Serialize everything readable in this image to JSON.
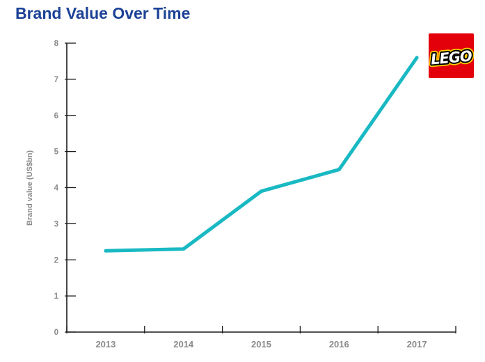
{
  "title": "Brand Value Over Time",
  "colors": {
    "title": "#1c4296",
    "line": "#19b9c3",
    "axis": "#1a1a1a",
    "tick_label": "#8a8a8a"
  },
  "logo": {
    "text": "LEGO",
    "bg": "#e3000b",
    "outline_yellow": "#ffcf00",
    "outline_black": "#000000",
    "letter_fill": "#ffffff"
  },
  "chart_data": {
    "type": "line",
    "title": "Brand Value Over Time",
    "categories": [
      "2013",
      "2014",
      "2015",
      "2016",
      "2017"
    ],
    "values": [
      2.25,
      2.3,
      3.9,
      4.5,
      7.6
    ],
    "xlabel": "",
    "ylabel": "Brand value (US$bn)",
    "ylim": [
      0,
      8
    ],
    "yticks": [
      0,
      1,
      2,
      3,
      4,
      5,
      6,
      7,
      8
    ],
    "grid": false,
    "legend": false
  }
}
